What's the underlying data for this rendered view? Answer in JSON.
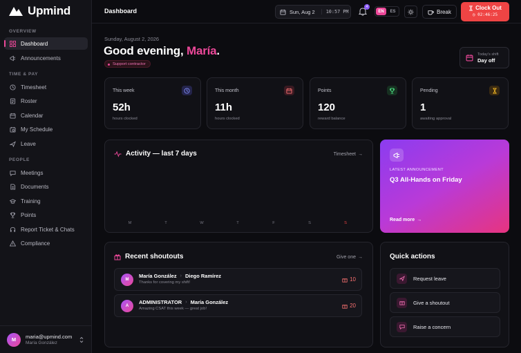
{
  "brand": {
    "name": "Upmind"
  },
  "sidebar": {
    "sections": [
      "OVERVIEW",
      "TIME & PAY",
      "PEOPLE"
    ],
    "items": [
      {
        "label": "Dashboard",
        "icon": "dashboard-icon",
        "active": true
      },
      {
        "label": "Announcements",
        "icon": "megaphone-icon"
      },
      {
        "label": "Timesheet",
        "icon": "clock-icon"
      },
      {
        "label": "Roster",
        "icon": "roster-icon"
      },
      {
        "label": "Calendar",
        "icon": "calendar-icon"
      },
      {
        "label": "My Schedule",
        "icon": "schedule-icon"
      },
      {
        "label": "Leave",
        "icon": "plane-icon"
      },
      {
        "label": "Meetings",
        "icon": "chat-icon"
      },
      {
        "label": "Documents",
        "icon": "document-icon"
      },
      {
        "label": "Training",
        "icon": "graduation-icon"
      },
      {
        "label": "Points",
        "icon": "trophy-icon"
      },
      {
        "label": "Report Ticket & Chats",
        "icon": "headset-icon"
      },
      {
        "label": "Compliance",
        "icon": "alert-icon"
      }
    ],
    "user": {
      "initial": "M",
      "email": "maria@upmind.com",
      "name": "María González"
    }
  },
  "topbar": {
    "title": "Dashboard",
    "date": "Sun, Aug 2",
    "time": "10:57 PM",
    "notifications": "4",
    "lang_en": "EN",
    "lang_es": "ES",
    "break_label": "Break",
    "clock_out_label": "Clock Out",
    "clock_elapsed": "02:46:25"
  },
  "header": {
    "date": "Sunday, August 2, 2026",
    "greeting": "Good evening, ",
    "name": "María",
    "punct": ".",
    "tag": "Support contractor",
    "shift_label": "Today's shift",
    "shift_value": "Day off"
  },
  "stats": [
    {
      "label": "This week",
      "value": "52h",
      "sub": "hours clocked",
      "icon": "clock-icon",
      "color": "#6366f1"
    },
    {
      "label": "This month",
      "value": "11h",
      "sub": "hours clocked",
      "icon": "calendar-icon",
      "color": "#ef4444"
    },
    {
      "label": "Points",
      "value": "120",
      "sub": "reward balance",
      "icon": "trophy-icon",
      "color": "#22c55e"
    },
    {
      "label": "Pending",
      "value": "1",
      "sub": "awaiting approval",
      "icon": "hourglass-icon",
      "color": "#f59e0b"
    }
  ],
  "activity": {
    "title": "Activity — last 7 days",
    "link": "Timesheet",
    "days": [
      "M",
      "T",
      "W",
      "T",
      "F",
      "S",
      "S"
    ]
  },
  "announcement": {
    "kicker": "LATEST ANNOUNCEMENT",
    "title": "Q3 All-Hands on Friday",
    "link": "Read more"
  },
  "shoutouts": {
    "title": "Recent shoutouts",
    "link": "Give one",
    "items": [
      {
        "initial": "M",
        "from": "María González",
        "to": "Diego Ramírez",
        "msg": "Thanks for covering my shift!",
        "points": "10"
      },
      {
        "initial": "A",
        "from": "ADMINISTRATOR",
        "to": "María González",
        "msg": "Amazing CSAT this week — great job!",
        "points": "20"
      }
    ]
  },
  "quick_actions": {
    "title": "Quick actions",
    "items": [
      {
        "label": "Request leave",
        "icon": "plane-icon"
      },
      {
        "label": "Give a shoutout",
        "icon": "gift-icon"
      },
      {
        "label": "Raise a concern",
        "icon": "chat-icon"
      }
    ]
  },
  "colors": {
    "accent": "#ec4899",
    "clock_out": "#ef4444",
    "purple": "#8b5cf6"
  }
}
